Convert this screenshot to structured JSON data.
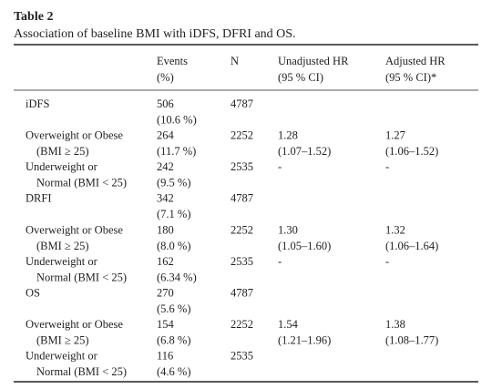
{
  "title": "Table 2",
  "caption": "Association of baseline BMI with iDFS, DFRI and OS.",
  "header": [
    {
      "key": "events",
      "lines": [
        "Events",
        "(%)"
      ]
    },
    {
      "key": "n",
      "lines": [
        "N"
      ]
    },
    {
      "key": "unadjusted",
      "lines": [
        "Unadjusted HR",
        "(95 % CI)"
      ]
    },
    {
      "key": "adjusted",
      "lines": [
        "Adjusted HR",
        "(95 % CI)*"
      ]
    }
  ],
  "rows": [
    {
      "label": [
        "iDFS"
      ],
      "events": [
        "506",
        "(10.6 %)"
      ],
      "n": [
        4787
      ]
    },
    {
      "label": [
        "Overweight or Obese",
        "(BMI ≥ 25)"
      ],
      "events": [
        "264",
        "(11.7 %)"
      ],
      "n": [
        2252
      ],
      "unadjusted": [
        "1.28",
        "(1.07–1.52)"
      ],
      "adjusted": [
        "1.27",
        "(1.06–1.52)"
      ]
    },
    {
      "label": [
        "Underweight or",
        "Normal (BMI < 25)"
      ],
      "events": [
        "242",
        "(9.5 %)"
      ],
      "n": [
        2535
      ],
      "unadjusted": [
        "-"
      ],
      "adjusted": [
        "-"
      ]
    },
    {
      "label": [
        "DRFI"
      ],
      "events": [
        "342",
        "(7.1 %)"
      ],
      "n": [
        4787
      ]
    },
    {
      "label": [
        "Overweight or Obese",
        "(BMI ≥ 25)"
      ],
      "events": [
        "180",
        "(8.0 %)"
      ],
      "n": [
        2252
      ],
      "unadjusted": [
        "1.30",
        "(1.05–1.60)"
      ],
      "adjusted": [
        "1.32",
        "(1.06–1.64)"
      ]
    },
    {
      "label": [
        "Underweight or",
        "Normal (BMI < 25)"
      ],
      "events": [
        "162",
        "(6.34 %)"
      ],
      "n": [
        2535
      ],
      "unadjusted": [
        "-"
      ],
      "adjusted": [
        "-"
      ]
    },
    {
      "label": [
        "OS"
      ],
      "events": [
        "270",
        "(5.6 %)"
      ],
      "n": [
        4787
      ]
    },
    {
      "label": [
        "Overweight or Obese",
        "(BMI ≥ 25)"
      ],
      "events": [
        "154",
        "(6.8 %)"
      ],
      "n": [
        2252
      ],
      "unadjusted": [
        "1.54",
        "(1.21–1.96)"
      ],
      "adjusted": [
        "1.38",
        "(1.08–1.77)"
      ]
    },
    {
      "label": [
        "Underweight or",
        "Normal (BMI < 25)"
      ],
      "events": [
        "116",
        "(4.6 %)"
      ],
      "n": [
        2535
      ]
    }
  ]
}
